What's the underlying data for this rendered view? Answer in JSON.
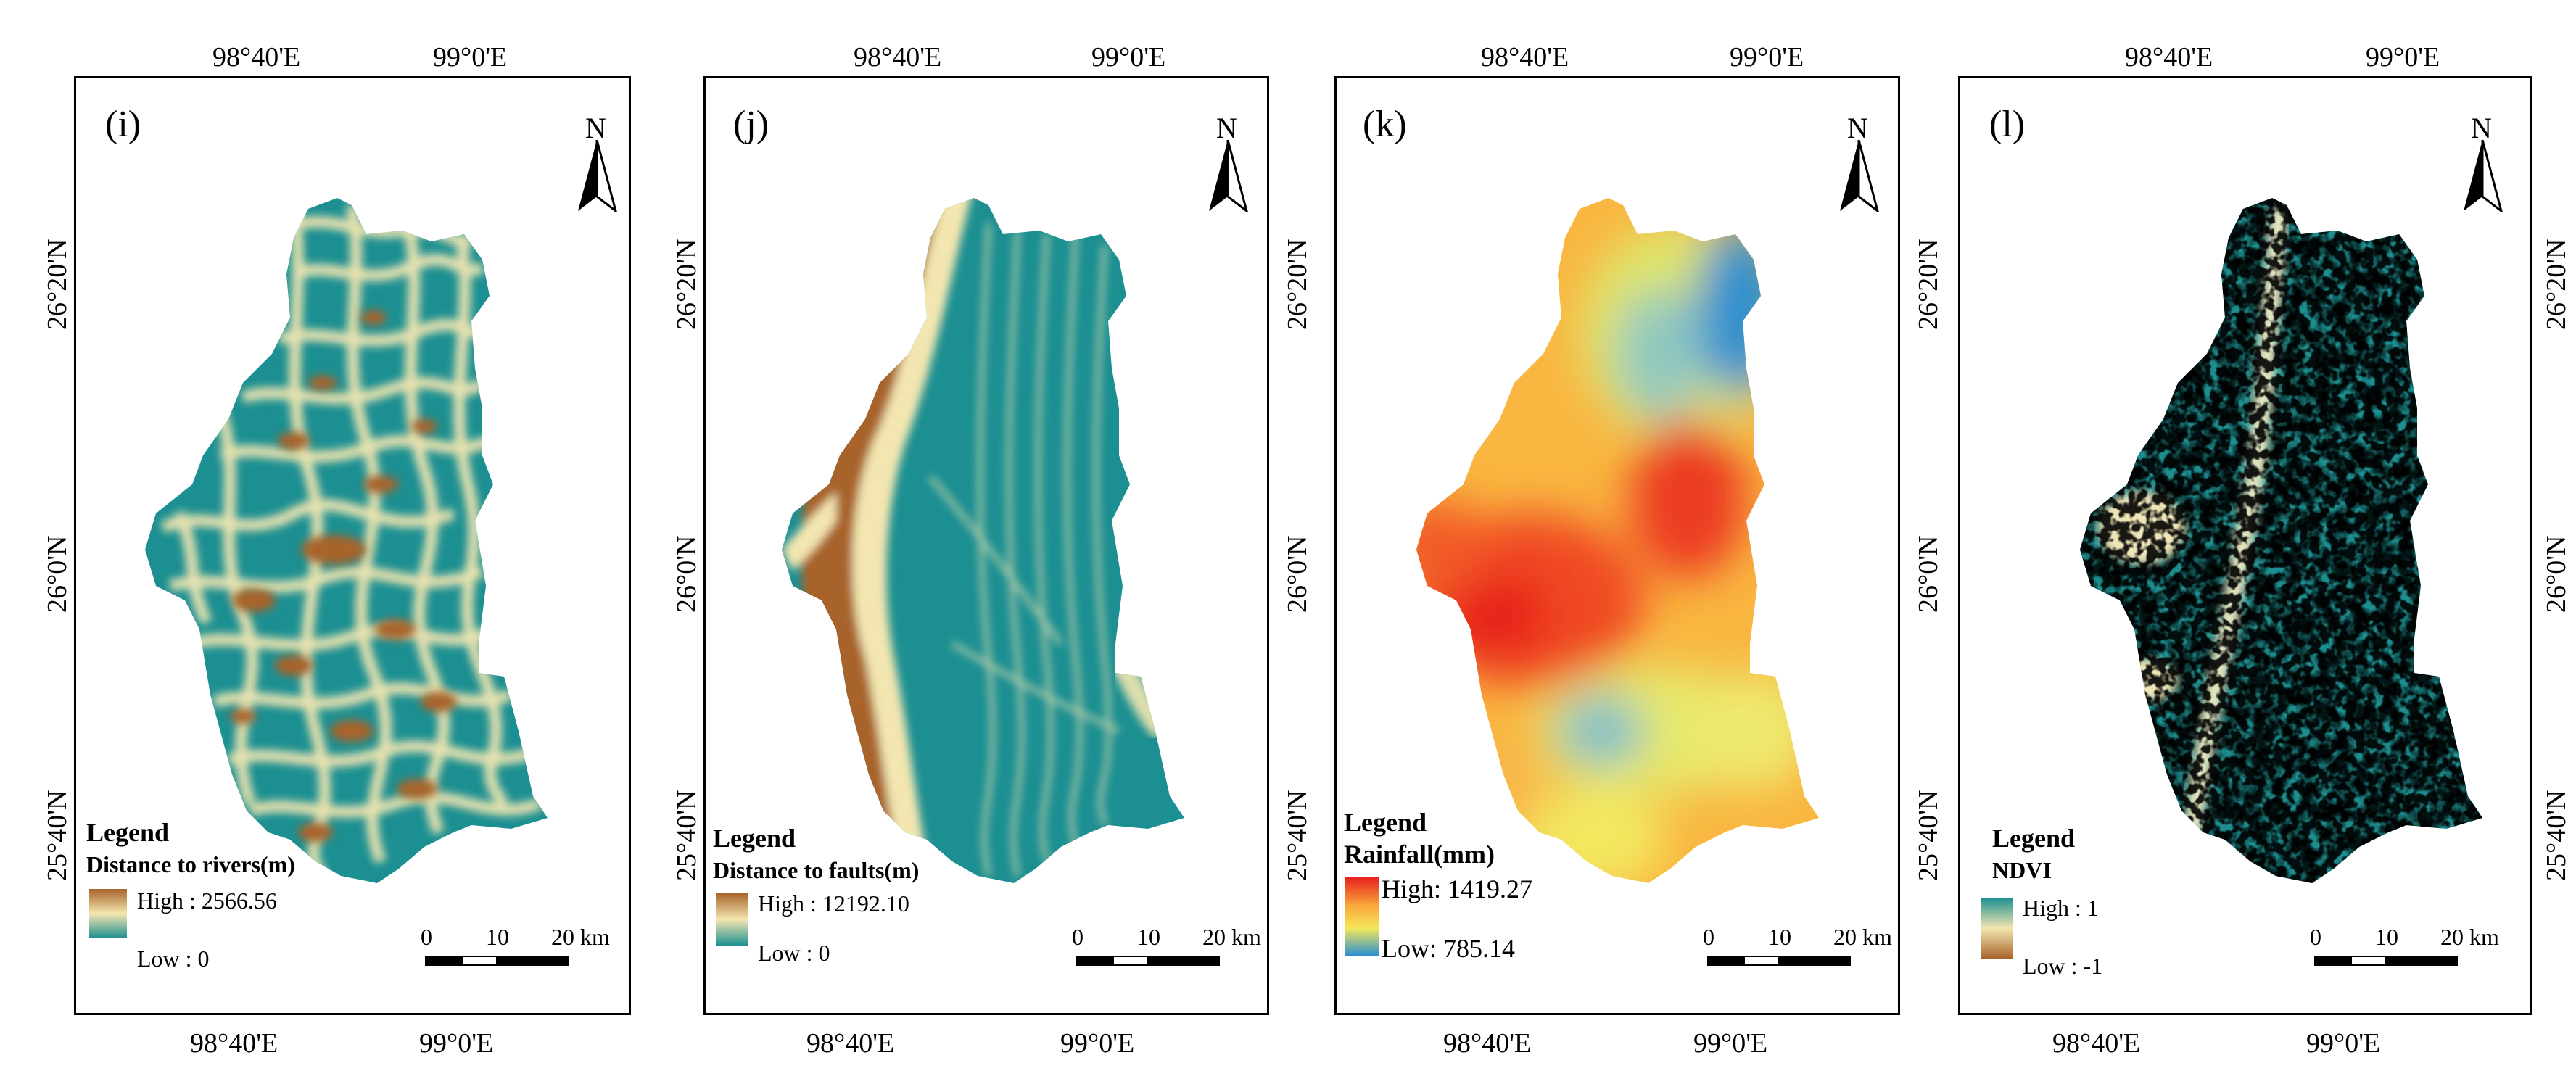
{
  "panels": [
    {
      "id": "i",
      "panel_label": "(i)",
      "coords": {
        "lon_top_left": "98°40'E",
        "lon_top_right": "99°0'E",
        "lon_bottom_left": "98°40'E",
        "lon_bottom_right": "99°0'E",
        "lat_top": "26°20'N",
        "lat_mid": "26°0'N",
        "lat_bottom": "25°40'N"
      },
      "north": "N",
      "legend": {
        "title": "Legend",
        "variable": "Distance to rivers(m)",
        "high": "High : 2566.56",
        "low": "Low : 0"
      },
      "scale": {
        "t0": "0",
        "t1": "10",
        "t2": "20 km"
      },
      "colors": {
        "high": "#a8642a",
        "mid": "#f3e6b0",
        "low": "#1c8f92"
      }
    },
    {
      "id": "j",
      "panel_label": "(j)",
      "coords": {
        "lon_top_left": "98°40'E",
        "lon_top_right": "99°0'E",
        "lon_bottom_left": "98°40'E",
        "lon_bottom_right": "99°0'E",
        "lat_top": "26°20'N",
        "lat_mid": "26°0'N",
        "lat_bottom": "25°40'N"
      },
      "north": "N",
      "legend": {
        "title": "Legend",
        "variable": "Distance to faults(m)",
        "high": "High : 12192.10",
        "low": "Low : 0"
      },
      "scale": {
        "t0": "0",
        "t1": "10",
        "t2": "20 km"
      },
      "colors": {
        "high": "#a8642a",
        "mid": "#f3e6b0",
        "low": "#1c8f92"
      }
    },
    {
      "id": "k",
      "panel_label": "(k)",
      "coords": {
        "lon_top_left": "98°40'E",
        "lon_top_right": "99°0'E",
        "lon_bottom_left": "98°40'E",
        "lon_bottom_right": "99°0'E",
        "lat_top": "26°20'N",
        "lat_mid": "26°0'N",
        "lat_bottom": "25°40'N"
      },
      "north": "N",
      "legend": {
        "title": "Legend",
        "variable": "Rainfall(mm)",
        "high": "High: 1419.27",
        "low": "Low: 785.14"
      },
      "scale": {
        "t0": "0",
        "t1": "10",
        "t2": "20 km"
      },
      "colors": {
        "high": "#e8201e",
        "mid": "#f5e85a",
        "low": "#2a8fd0"
      }
    },
    {
      "id": "l",
      "panel_label": "(l)",
      "coords": {
        "lon_top_left": "98°40'E",
        "lon_top_right": "99°0'E",
        "lon_bottom_left": "98°40'E",
        "lon_bottom_right": "99°0'E",
        "lat_top": "26°20'N",
        "lat_mid": "26°0'N",
        "lat_bottom": "25°40'N"
      },
      "north": "N",
      "legend": {
        "title": "Legend",
        "variable": "NDVI",
        "high": "High : 1",
        "low": "Low : -1"
      },
      "scale": {
        "t0": "0",
        "t1": "10",
        "t2": "20 km"
      },
      "colors": {
        "high": "#1c8f92",
        "mid": "#f3e6b0",
        "low": "#a8642a"
      }
    }
  ]
}
